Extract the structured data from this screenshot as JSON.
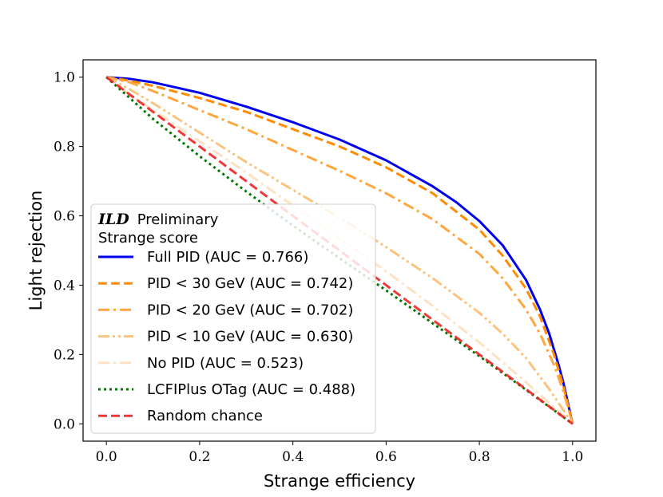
{
  "chart_data": {
    "type": "line",
    "title": "",
    "xlabel": "Strange efficiency",
    "ylabel": "Light rejection",
    "xlim": [
      -0.05,
      1.05
    ],
    "ylim": [
      -0.05,
      1.05
    ],
    "x_ticks": [
      0.0,
      0.2,
      0.4,
      0.6,
      0.8,
      1.0
    ],
    "y_ticks": [
      0.0,
      0.2,
      0.4,
      0.6,
      0.8,
      1.0
    ],
    "x_tick_labels": [
      "0.0",
      "0.2",
      "0.4",
      "0.6",
      "0.8",
      "1.0"
    ],
    "y_tick_labels": [
      "0.0",
      "0.2",
      "0.4",
      "0.6",
      "0.8",
      "1.0"
    ],
    "grid": false,
    "legend": {
      "placement": "lower-left",
      "header_brand": "ILD",
      "header_sub": "Preliminary",
      "header_line2": "Strange score"
    },
    "series": [
      {
        "name": "Full PID (AUC = 0.766)",
        "color": "#0000ee",
        "dash": "solid",
        "opacity": 1.0,
        "x": [
          0.0,
          0.05,
          0.1,
          0.2,
          0.3,
          0.4,
          0.5,
          0.6,
          0.7,
          0.75,
          0.8,
          0.85,
          0.9,
          0.93,
          0.95,
          0.97,
          0.98,
          0.99,
          1.0
        ],
        "y": [
          1.0,
          0.995,
          0.985,
          0.955,
          0.915,
          0.87,
          0.82,
          0.76,
          0.685,
          0.64,
          0.585,
          0.515,
          0.415,
          0.33,
          0.26,
          0.17,
          0.12,
          0.06,
          0.0
        ]
      },
      {
        "name": "PID < 30 GeV (AUC = 0.742)",
        "color": "#ff8c00",
        "dash": "dashed",
        "opacity": 1.0,
        "x": [
          0.0,
          0.05,
          0.1,
          0.2,
          0.3,
          0.4,
          0.5,
          0.6,
          0.7,
          0.8,
          0.85,
          0.9,
          0.93,
          0.96,
          0.98,
          1.0
        ],
        "y": [
          1.0,
          0.99,
          0.975,
          0.94,
          0.9,
          0.85,
          0.8,
          0.74,
          0.665,
          0.56,
          0.485,
          0.39,
          0.31,
          0.2,
          0.11,
          0.0
        ]
      },
      {
        "name": "PID < 20 GeV (AUC = 0.702)",
        "color": "#ffa640",
        "dash": "dashdot",
        "opacity": 1.0,
        "x": [
          0.0,
          0.05,
          0.1,
          0.2,
          0.3,
          0.4,
          0.5,
          0.6,
          0.7,
          0.8,
          0.85,
          0.9,
          0.93,
          0.96,
          0.98,
          1.0
        ],
        "y": [
          1.0,
          0.985,
          0.96,
          0.905,
          0.85,
          0.79,
          0.73,
          0.665,
          0.59,
          0.49,
          0.42,
          0.33,
          0.26,
          0.17,
          0.095,
          0.0
        ]
      },
      {
        "name": "PID < 10 GeV (AUC = 0.630)",
        "color": "#fcc37f",
        "dash": "dashdotdot",
        "opacity": 1.0,
        "x": [
          0.0,
          0.05,
          0.1,
          0.2,
          0.3,
          0.4,
          0.5,
          0.6,
          0.7,
          0.8,
          0.85,
          0.9,
          0.95,
          1.0
        ],
        "y": [
          1.0,
          0.965,
          0.925,
          0.84,
          0.755,
          0.675,
          0.595,
          0.51,
          0.42,
          0.32,
          0.26,
          0.19,
          0.1,
          0.0
        ]
      },
      {
        "name": "No PID (AUC = 0.523)",
        "color": "#fde2c2",
        "dash": "dashdot",
        "opacity": 1.0,
        "x": [
          0.0,
          0.05,
          0.1,
          0.2,
          0.3,
          0.4,
          0.5,
          0.6,
          0.7,
          0.8,
          0.9,
          1.0
        ],
        "y": [
          1.0,
          0.95,
          0.905,
          0.815,
          0.725,
          0.63,
          0.535,
          0.44,
          0.34,
          0.235,
          0.12,
          0.0
        ]
      },
      {
        "name": "LCFIPlus OTag (AUC = 0.488)",
        "color": "#007700",
        "dash": "dotted",
        "opacity": 1.0,
        "x": [
          0.0,
          0.1,
          0.2,
          0.3,
          0.4,
          0.5,
          0.6,
          0.7,
          0.8,
          0.9,
          1.0
        ],
        "y": [
          1.0,
          0.88,
          0.772,
          0.67,
          0.572,
          0.478,
          0.385,
          0.29,
          0.195,
          0.098,
          0.0
        ]
      },
      {
        "name": "Random chance",
        "color": "#ee2222",
        "dash": "dashed",
        "opacity": 0.9,
        "x": [
          0.0,
          1.0
        ],
        "y": [
          1.0,
          0.0
        ]
      }
    ]
  }
}
